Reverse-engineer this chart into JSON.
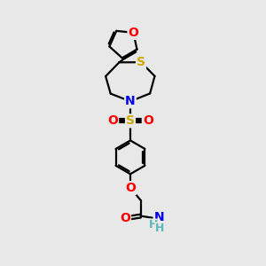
{
  "bg_color": "#e8e8e8",
  "atom_colors": {
    "S_ring": "#ccaa00",
    "S_sul": "#ccaa00",
    "N": "#0000ee",
    "O": "#ff0000",
    "H": "#5ab8b8",
    "C": "#000000"
  },
  "lw": 1.6,
  "fs": 10,
  "fs_small": 9
}
